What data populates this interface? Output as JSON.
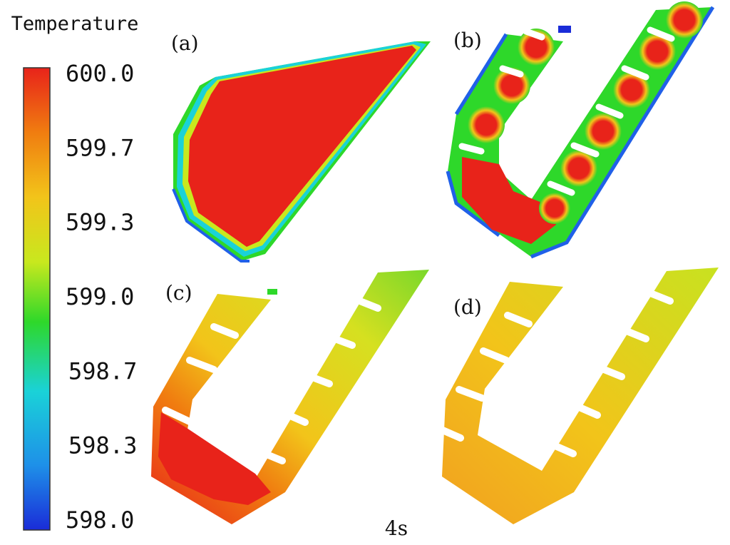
{
  "legend": {
    "title": "Temperature",
    "ticks": [
      "600.0",
      "599.7",
      "599.3",
      "599.0",
      "598.7",
      "598.3",
      "598.0"
    ],
    "colors": [
      "#e8231a",
      "#f07d10",
      "#f2c41a",
      "#c8e81e",
      "#2ed82a",
      "#1ad2d8",
      "#2060e8",
      "#1a2cd8"
    ]
  },
  "panels": [
    {
      "label": "(a)"
    },
    {
      "label": "(b)"
    },
    {
      "label": "(c)"
    },
    {
      "label": "(d)"
    }
  ],
  "time_label": "4s"
}
